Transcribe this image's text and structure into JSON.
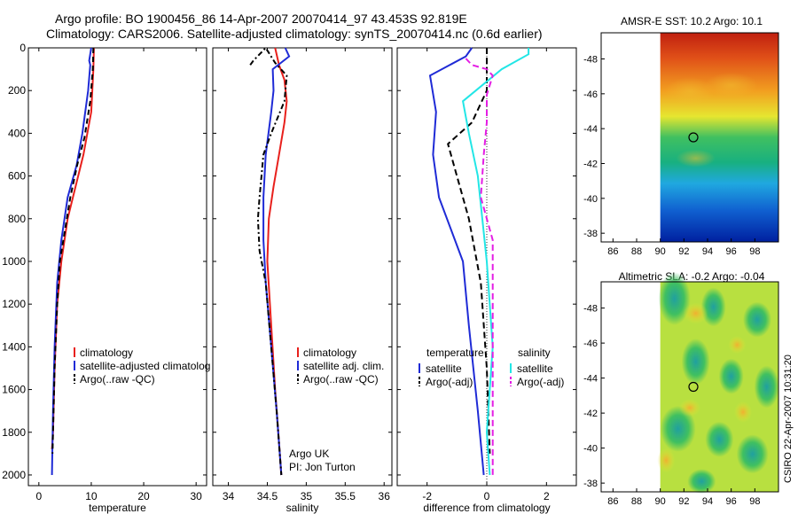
{
  "header": {
    "line1": "Argo profile: BO 1900456_86 14-Apr-2007 20070414_97 43.453S 92.819E",
    "line2": "Climatology: CARS2006. Satellite-adjusted climatology: synTS_20070414.nc (0.6d earlier)"
  },
  "side_label": "CSIRO 22-Apr-2007 10:31:20",
  "colors": {
    "red": "#e8201c",
    "blue": "#1f2bd6",
    "black": "#000000",
    "cyan": "#22e6e6",
    "magenta": "#e41ee4"
  },
  "chart_data": [
    {
      "type": "line",
      "xlabel": "temperature",
      "ylim": [
        0,
        2050
      ],
      "xlim": [
        -2,
        32
      ],
      "xticks": [
        "0",
        "10",
        "20",
        "30"
      ],
      "xtick_values": [
        0,
        10,
        20,
        30
      ],
      "yticks": [
        "0",
        "200",
        "400",
        "600",
        "800",
        "1000",
        "1200",
        "1400",
        "1600",
        "1800",
        "2000"
      ],
      "ytick_values": [
        0,
        200,
        400,
        600,
        800,
        1000,
        1200,
        1400,
        1600,
        1800,
        2000
      ],
      "legend": [
        "climatology",
        "satellite-adjusted climatolog",
        "Argo(..raw -QC)"
      ],
      "series": [
        {
          "name": "climatology",
          "color": "red",
          "dash": "",
          "points": [
            [
              10.5,
              0
            ],
            [
              10.4,
              100
            ],
            [
              10.0,
              300
            ],
            [
              8.5,
              500
            ],
            [
              7.0,
              650
            ],
            [
              5.5,
              800
            ],
            [
              4.3,
              1000
            ],
            [
              3.5,
              1200
            ],
            [
              3.0,
              1500
            ],
            [
              2.7,
              1800
            ],
            [
              2.5,
              1880
            ]
          ]
        },
        {
          "name": "satellite-adjusted climatolog",
          "color": "blue",
          "dash": "",
          "points": [
            [
              10.0,
              0
            ],
            [
              9.6,
              60
            ],
            [
              9.8,
              80
            ],
            [
              9.4,
              200
            ],
            [
              8.3,
              400
            ],
            [
              7.2,
              550
            ],
            [
              5.5,
              700
            ],
            [
              4.3,
              900
            ],
            [
              3.5,
              1100
            ],
            [
              3.0,
              1400
            ],
            [
              2.7,
              1700
            ],
            [
              2.5,
              2000
            ]
          ]
        },
        {
          "name": "Argo(..raw -QC)",
          "color": "black",
          "dash": "6,4",
          "points": [
            [
              10.4,
              0
            ],
            [
              10.3,
              100
            ],
            [
              9.8,
              250
            ],
            [
              8.7,
              420
            ],
            [
              7.3,
              550
            ],
            [
              6.0,
              700
            ],
            [
              5.0,
              850
            ],
            [
              4.0,
              1000
            ],
            [
              3.5,
              1200
            ],
            [
              3.0,
              1500
            ],
            [
              2.7,
              1800
            ],
            [
              2.6,
              1900
            ]
          ]
        }
      ]
    },
    {
      "type": "line",
      "xlabel": "salinity",
      "ylim": [
        0,
        2050
      ],
      "xlim": [
        33.8,
        36.1
      ],
      "xticks": [
        "34",
        "34.5",
        "35",
        "35.5",
        "36"
      ],
      "xtick_values": [
        34,
        34.5,
        35,
        35.5,
        36
      ],
      "legend": [
        "climatology",
        "satellite adj. clim.",
        "Argo(..raw -QC)"
      ],
      "annotation": [
        "Argo UK",
        "PI: Jon Turton"
      ],
      "series": [
        {
          "name": "climatology",
          "color": "red",
          "dash": "",
          "points": [
            [
              34.6,
              0
            ],
            [
              34.65,
              80
            ],
            [
              34.72,
              150
            ],
            [
              34.75,
              250
            ],
            [
              34.72,
              350
            ],
            [
              34.65,
              500
            ],
            [
              34.58,
              650
            ],
            [
              34.52,
              800
            ],
            [
              34.5,
              1000
            ],
            [
              34.55,
              1300
            ],
            [
              34.6,
              1600
            ],
            [
              34.65,
              1850
            ],
            [
              34.68,
              2000
            ]
          ]
        },
        {
          "name": "satellite adj. clim.",
          "color": "blue",
          "dash": "",
          "points": [
            [
              34.73,
              0
            ],
            [
              34.78,
              40
            ],
            [
              34.57,
              100
            ],
            [
              34.58,
              200
            ],
            [
              34.55,
              300
            ],
            [
              34.48,
              500
            ],
            [
              34.45,
              700
            ],
            [
              34.45,
              900
            ],
            [
              34.48,
              1100
            ],
            [
              34.55,
              1400
            ],
            [
              34.62,
              1700
            ],
            [
              34.68,
              2000
            ]
          ]
        },
        {
          "name": "Argo(..raw -QC)",
          "color": "black",
          "dash": "6,3,2,3",
          "points": [
            [
              34.28,
              80
            ],
            [
              34.32,
              60
            ],
            [
              34.48,
              0
            ],
            [
              34.6,
              70
            ],
            [
              34.75,
              130
            ],
            [
              34.72,
              250
            ],
            [
              34.55,
              400
            ],
            [
              34.45,
              500
            ],
            [
              34.4,
              700
            ],
            [
              34.38,
              800
            ],
            [
              34.4,
              950
            ],
            [
              34.48,
              1100
            ],
            [
              34.55,
              1400
            ],
            [
              34.62,
              1700
            ],
            [
              34.68,
              2000
            ]
          ]
        }
      ]
    },
    {
      "type": "line",
      "xlabel": "difference from climatology",
      "ylim": [
        0,
        2050
      ],
      "xlim": [
        -3.0,
        3.0
      ],
      "xticks": [
        "-2",
        "0",
        "2"
      ],
      "xtick_values": [
        -2,
        0,
        2
      ],
      "legend_left": {
        "title": "temperature",
        "items": [
          "satellite",
          "Argo(-adj)"
        ]
      },
      "legend_right": {
        "title": "salinity",
        "items": [
          "satellite",
          "Argo(-adj)"
        ]
      },
      "series": [
        {
          "name": "temperature satellite",
          "color": "blue",
          "dash": "",
          "points": [
            [
              -0.5,
              0
            ],
            [
              -0.7,
              40
            ],
            [
              -1.9,
              130
            ],
            [
              -1.7,
              300
            ],
            [
              -1.8,
              500
            ],
            [
              -1.6,
              700
            ],
            [
              -0.8,
              1000
            ],
            [
              -0.6,
              1300
            ],
            [
              -0.3,
              1700
            ],
            [
              -0.1,
              2000
            ]
          ]
        },
        {
          "name": "temperature Argo(-adj)",
          "color": "black",
          "dash": "7,4",
          "points": [
            [
              0.0,
              0
            ],
            [
              0.0,
              200
            ],
            [
              -0.5,
              350
            ],
            [
              -1.3,
              450
            ],
            [
              -1.0,
              600
            ],
            [
              -0.6,
              800
            ],
            [
              -0.2,
              1100
            ],
            [
              0.0,
              1500
            ],
            [
              0.1,
              1900
            ]
          ]
        },
        {
          "name": "salinity satellite",
          "color": "cyan",
          "dash": "",
          "points": [
            [
              1.4,
              0
            ],
            [
              1.4,
              30
            ],
            [
              0.5,
              100
            ],
            [
              -0.8,
              250
            ],
            [
              -0.6,
              400
            ],
            [
              -0.3,
              600
            ],
            [
              0.0,
              1000
            ],
            [
              0.2,
              1400
            ],
            [
              0.0,
              1800
            ],
            [
              0.1,
              2000
            ]
          ]
        },
        {
          "name": "salinity Argo(-adj)",
          "color": "magenta",
          "dash": "7,4",
          "points": [
            [
              -0.7,
              50
            ],
            [
              -0.5,
              80
            ],
            [
              0.0,
              100
            ],
            [
              0.2,
              130
            ],
            [
              0.0,
              220
            ],
            [
              0.0,
              350
            ],
            [
              -0.1,
              500
            ],
            [
              -0.2,
              700
            ],
            [
              0.2,
              900
            ],
            [
              0.2,
              1200
            ],
            [
              0.2,
              1600
            ],
            [
              0.2,
              2000
            ]
          ]
        }
      ]
    },
    {
      "type": "heatmap",
      "title": "AMSR-E SST: 10.2 Argo: 10.1",
      "xlim": [
        85,
        100
      ],
      "ylim": [
        -49.5,
        -37.5
      ],
      "xticks": [
        "86",
        "88",
        "90",
        "92",
        "94",
        "96",
        "98"
      ],
      "xtick_values": [
        86,
        88,
        90,
        92,
        94,
        96,
        98
      ],
      "yticks": [
        "-38",
        "-40",
        "-42",
        "-44",
        "-46",
        "-48"
      ],
      "ytick_values": [
        -38,
        -40,
        -42,
        -44,
        -46,
        -48
      ],
      "data_xlim": [
        90,
        100
      ],
      "marker": [
        92.8,
        -43.5
      ]
    },
    {
      "type": "heatmap",
      "title": "Altimetric SLA: -0.2 Argo: -0.04",
      "xlim": [
        85,
        100
      ],
      "ylim": [
        -49.5,
        -37.5
      ],
      "xticks": [
        "86",
        "88",
        "90",
        "92",
        "94",
        "96",
        "98"
      ],
      "xtick_values": [
        86,
        88,
        90,
        92,
        94,
        96,
        98
      ],
      "yticks": [
        "-38",
        "-40",
        "-42",
        "-44",
        "-46",
        "-48"
      ],
      "ytick_values": [
        -38,
        -40,
        -42,
        -44,
        -46,
        -48
      ],
      "data_xlim": [
        90,
        100
      ],
      "marker": [
        92.8,
        -43.5
      ]
    }
  ]
}
